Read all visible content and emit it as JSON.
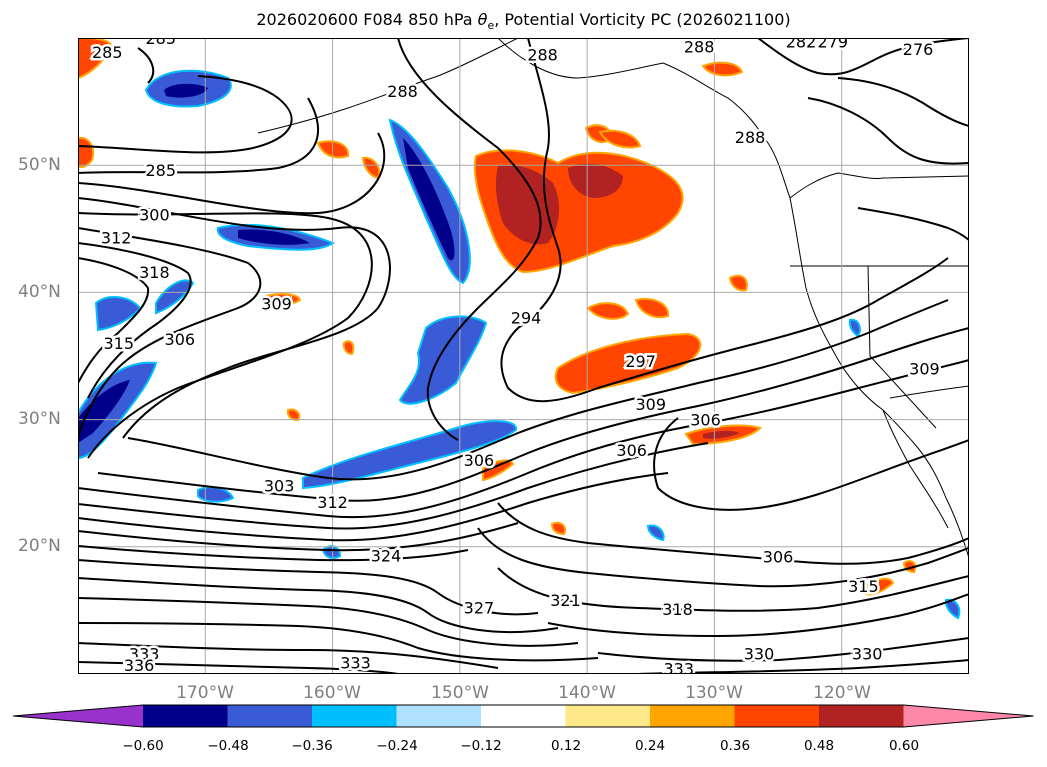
{
  "title": {
    "prefix": "2026020600 F084 850 hPa ",
    "symbol": "θ",
    "subscript": "e",
    "suffix": ", Potential Vorticity PC (2026021100)"
  },
  "map": {
    "projection": "lat-lon",
    "lon_range": [
      -180,
      -110
    ],
    "lat_range": [
      10,
      60
    ],
    "lat_ticks": [
      {
        "value": 50,
        "label": "50°N"
      },
      {
        "value": 40,
        "label": "40°N"
      },
      {
        "value": 30,
        "label": "30°N"
      },
      {
        "value": 20,
        "label": "20°N"
      }
    ],
    "lon_ticks": [
      {
        "value": -170,
        "label": "170°W"
      },
      {
        "value": -160,
        "label": "160°W"
      },
      {
        "value": -150,
        "label": "150°W"
      },
      {
        "value": -140,
        "label": "140°W"
      },
      {
        "value": -130,
        "label": "130°W"
      },
      {
        "value": -120,
        "label": "120°W"
      }
    ],
    "gridlines": true,
    "contour_labels": [
      {
        "text": "285",
        "lon": -177.7,
        "lat": 58.8
      },
      {
        "text": "285",
        "lon": -173.5,
        "lat": 59.9
      },
      {
        "text": "285",
        "lon": -173.5,
        "lat": 49.5
      },
      {
        "text": "288",
        "lon": -154.5,
        "lat": 55.7
      },
      {
        "text": "288",
        "lon": -143.5,
        "lat": 58.6
      },
      {
        "text": "288",
        "lon": -131.2,
        "lat": 59.2
      },
      {
        "text": "288",
        "lon": -127.2,
        "lat": 52.1
      },
      {
        "text": "282",
        "lon": -123.2,
        "lat": 59.6
      },
      {
        "text": "279",
        "lon": -120.7,
        "lat": 59.6
      },
      {
        "text": "276",
        "lon": -114.0,
        "lat": 59.0
      },
      {
        "text": "300",
        "lon": -174.0,
        "lat": 46.0
      },
      {
        "text": "312",
        "lon": -177.0,
        "lat": 44.2
      },
      {
        "text": "318",
        "lon": -174.0,
        "lat": 41.5
      },
      {
        "text": "309",
        "lon": -164.4,
        "lat": 39.0
      },
      {
        "text": "315",
        "lon": -176.8,
        "lat": 35.9
      },
      {
        "text": "306",
        "lon": -172.0,
        "lat": 36.2
      },
      {
        "text": "294",
        "lon": -144.8,
        "lat": 37.9
      },
      {
        "text": "297",
        "lon": -135.8,
        "lat": 34.5
      },
      {
        "text": "309",
        "lon": -135.0,
        "lat": 31.1
      },
      {
        "text": "309",
        "lon": -113.5,
        "lat": 33.9
      },
      {
        "text": "306",
        "lon": -130.7,
        "lat": 29.9
      },
      {
        "text": "306",
        "lon": -136.5,
        "lat": 27.5
      },
      {
        "text": "306",
        "lon": -148.5,
        "lat": 26.7
      },
      {
        "text": "303",
        "lon": -164.2,
        "lat": 24.7
      },
      {
        "text": "312",
        "lon": -160.0,
        "lat": 23.4
      },
      {
        "text": "324",
        "lon": -155.8,
        "lat": 19.2
      },
      {
        "text": "327",
        "lon": -148.5,
        "lat": 15.1
      },
      {
        "text": "321",
        "lon": -141.7,
        "lat": 15.7
      },
      {
        "text": "318",
        "lon": -132.9,
        "lat": 15.0
      },
      {
        "text": "306",
        "lon": -125.0,
        "lat": 19.1
      },
      {
        "text": "315",
        "lon": -118.3,
        "lat": 16.8
      },
      {
        "text": "330",
        "lon": -126.5,
        "lat": 11.5
      },
      {
        "text": "330",
        "lon": -118.0,
        "lat": 11.5
      },
      {
        "text": "333",
        "lon": -174.8,
        "lat": 11.5
      },
      {
        "text": "336",
        "lon": -175.2,
        "lat": 10.6
      },
      {
        "text": "333",
        "lon": -158.2,
        "lat": 10.8
      },
      {
        "text": "333",
        "lon": -132.8,
        "lat": 10.3
      }
    ]
  },
  "colorbar": {
    "ticks": [
      "−0.60",
      "−0.48",
      "−0.36",
      "−0.24",
      "−0.12",
      "0.12",
      "0.24",
      "0.36",
      "0.48",
      "0.60"
    ],
    "bins": [
      {
        "range": "below -0.60",
        "color": "#9932cc"
      },
      {
        "range": "-0.60 to -0.48",
        "color": "#00008b"
      },
      {
        "range": "-0.48 to -0.36",
        "color": "#3a5bd6"
      },
      {
        "range": "-0.36 to -0.24",
        "color": "#00bfff"
      },
      {
        "range": "-0.24 to -0.12",
        "color": "#b0e0ff"
      },
      {
        "range": "-0.12 to 0.12",
        "color": "#ffffff"
      },
      {
        "range": "0.12 to 0.24",
        "color": "#ffe88a"
      },
      {
        "range": "0.24 to 0.36",
        "color": "#ffa500"
      },
      {
        "range": "0.36 to 0.48",
        "color": "#ff4500"
      },
      {
        "range": "0.48 to 0.60",
        "color": "#b22222"
      },
      {
        "range": "above 0.60",
        "color": "#ff88aa"
      }
    ]
  },
  "colors": {
    "tick_label": "#7f7f7f",
    "contour": "#000000",
    "gridline": "#aaaaaa"
  }
}
